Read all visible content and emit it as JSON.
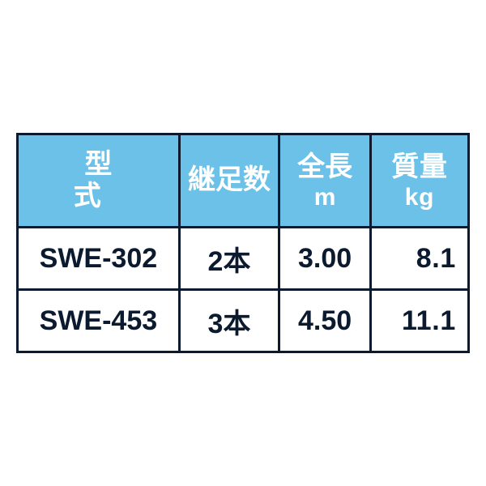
{
  "table": {
    "header_bg": "#6cc1e8",
    "header_fg": "#ffffff",
    "border_color": "#0b1a2e",
    "cell_fg": "#0b1a2e",
    "columns": [
      {
        "key": "model",
        "label": "型　式",
        "unit": ""
      },
      {
        "key": "legs",
        "label": "継足数",
        "unit": ""
      },
      {
        "key": "len",
        "label": "全長",
        "unit": "m"
      },
      {
        "key": "mass",
        "label": "質量",
        "unit": "kg"
      }
    ],
    "rows": [
      {
        "model": "SWE-302",
        "legs": "2本",
        "len": "3.00",
        "mass": "8.1"
      },
      {
        "model": "SWE-453",
        "legs": "3本",
        "len": "4.50",
        "mass": "11.1"
      }
    ]
  }
}
